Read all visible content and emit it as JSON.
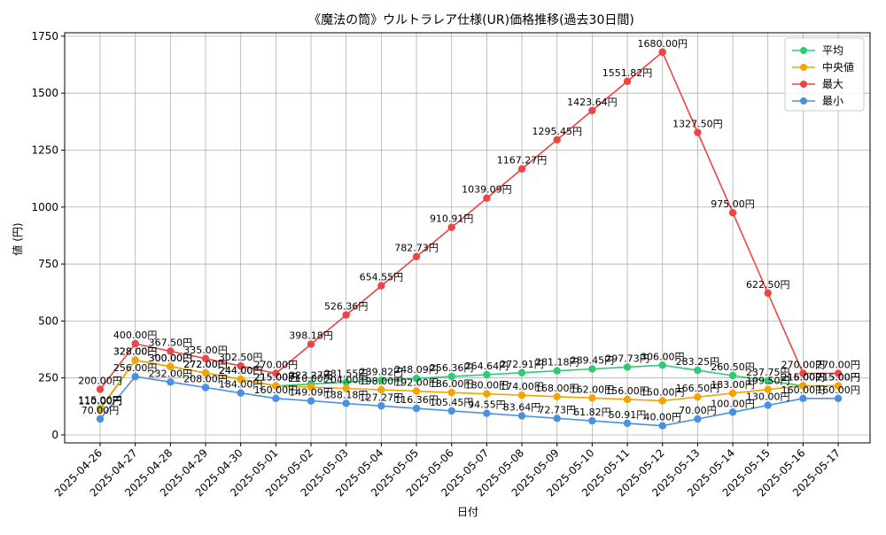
{
  "chart_data": {
    "type": "line",
    "title": "《魔法の筒》ウルトラレア仕様(UR)価格推移(過去30日間)",
    "xlabel": "日付",
    "ylabel": "値 (円)",
    "ylim": [
      -35,
      1765
    ],
    "yticks": [
      0,
      250,
      500,
      750,
      1000,
      1250,
      1500,
      1750
    ],
    "grid": true,
    "legend_position": "top-right",
    "value_suffix": "円",
    "categories": [
      "2025-04-26",
      "2025-04-27",
      "2025-04-28",
      "2025-04-29",
      "2025-04-30",
      "2025-05-01",
      "2025-05-02",
      "2025-05-03",
      "2025-05-04",
      "2025-05-05",
      "2025-05-06",
      "2025-05-07",
      "2025-05-08",
      "2025-05-09",
      "2025-05-10",
      "2025-05-11",
      "2025-05-12",
      "2025-05-13",
      "2025-05-14",
      "2025-05-15",
      "2025-05-16",
      "2025-05-17"
    ],
    "series": [
      {
        "name": "平均",
        "color": "#2ecc71",
        "values": [
          115.0,
          328.0,
          300.0,
          272.0,
          244.0,
          215.0,
          223.27,
          231.55,
          239.82,
          248.09,
          256.36,
          264.64,
          272.91,
          281.18,
          289.45,
          297.73,
          306.0,
          283.25,
          260.5,
          237.75,
          215.0,
          215.0
        ]
      },
      {
        "name": "中央値",
        "color": "#f5a300",
        "values": [
          110.0,
          328.0,
          300.0,
          272.0,
          244.0,
          215.0,
          210.0,
          204.0,
          198.0,
          192.0,
          186.0,
          180.0,
          174.0,
          168.0,
          162.0,
          156.0,
          150.0,
          166.5,
          183.0,
          199.5,
          216.0,
          215.0
        ]
      },
      {
        "name": "最大",
        "color": "#ee4444",
        "values": [
          200.0,
          400.0,
          367.5,
          335.0,
          302.5,
          270.0,
          398.18,
          526.36,
          654.55,
          782.73,
          910.91,
          1039.09,
          1167.27,
          1295.45,
          1423.64,
          1551.82,
          1680.0,
          1327.5,
          975.0,
          622.5,
          270.0,
          270.0
        ]
      },
      {
        "name": "最小",
        "color": "#4a90e2",
        "values": [
          70.0,
          256.0,
          232.0,
          208.0,
          184.0,
          160.0,
          149.09,
          138.18,
          127.27,
          116.36,
          105.45,
          94.55,
          83.64,
          72.73,
          61.82,
          50.91,
          40.0,
          70.0,
          100.0,
          130.0,
          160.0,
          160.0
        ]
      }
    ]
  }
}
